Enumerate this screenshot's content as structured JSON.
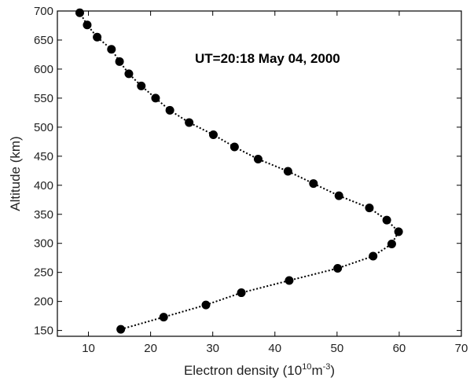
{
  "chart_data": {
    "type": "scatter",
    "title": "",
    "xlabel": "Electron density (10",
    "xlabel_exp": "10",
    "xlabel_mid": "m",
    "xlabel_exp2": "-3",
    "xlabel_end": ")",
    "ylabel": "Altitude (km)",
    "annotation": "UT=20:18  May 04, 2000",
    "xlim": [
      5,
      70
    ],
    "ylim": [
      140,
      700
    ],
    "xticks": [
      10,
      20,
      30,
      40,
      50,
      60,
      70
    ],
    "yticks": [
      150,
      200,
      250,
      300,
      350,
      400,
      450,
      500,
      550,
      600,
      650,
      700
    ],
    "grid": false,
    "series": [
      {
        "x": [
          15.2,
          22.1,
          28.9,
          34.6,
          42.3,
          50.1,
          55.8,
          58.8,
          59.9,
          58.0,
          55.2,
          50.3,
          46.2,
          42.1,
          37.3,
          33.5,
          30.1,
          26.2,
          23.1,
          20.8,
          18.5,
          16.5,
          15.0,
          13.7,
          11.4,
          9.8,
          8.6
        ],
        "y": [
          152,
          173,
          194,
          215,
          236,
          257,
          278,
          299,
          320,
          340,
          361,
          382,
          403,
          424,
          445,
          466,
          487,
          508,
          529,
          550,
          571,
          592,
          613,
          634,
          655,
          676,
          697
        ],
        "marker": "circle",
        "line": "dotted",
        "color": "#000000"
      }
    ]
  }
}
